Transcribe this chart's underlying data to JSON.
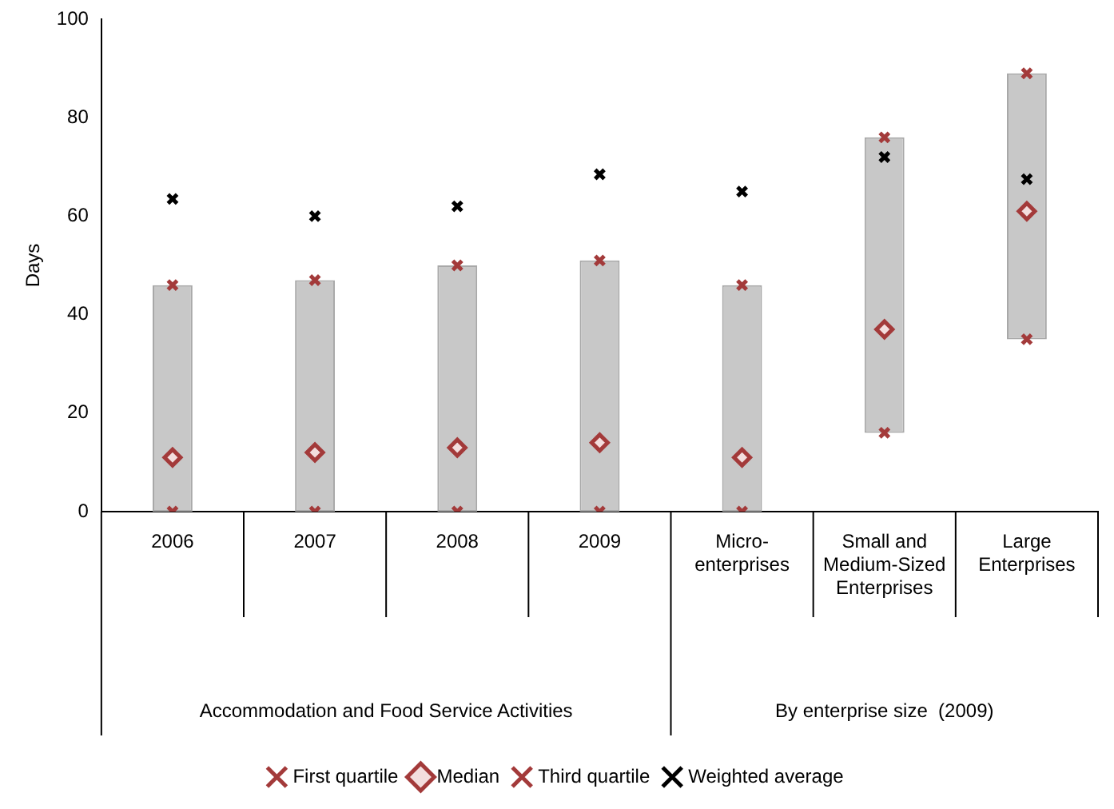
{
  "chart_data": {
    "type": "bar",
    "ylabel": "Days",
    "categories": [
      "2006",
      "2007",
      "2008",
      "2009",
      "Micro-enterprises",
      "Small and Medium-Sized Enterprises",
      "Large Enterprises"
    ],
    "series": [
      {
        "color": "#c8c8c8",
        "base": [
          0,
          0,
          0,
          0,
          0,
          16,
          35
        ],
        "values": [
          46,
          47,
          50,
          51,
          46,
          60,
          54
        ]
      },
      {
        "type": "scatter",
        "name": "First quartile",
        "color": "#a33a3a",
        "marker": "cross",
        "values": [
          0,
          0,
          0,
          0,
          0,
          16,
          35
        ]
      },
      {
        "type": "scatter",
        "name": "Median",
        "color": "#a33a3a",
        "marker": "diamond",
        "values": [
          11,
          12,
          13,
          14,
          11,
          37,
          61
        ]
      },
      {
        "type": "scatter",
        "name": "Third quartile",
        "color": "#a33a3a",
        "marker": "cross",
        "values": [
          46,
          47,
          50,
          51,
          46,
          76,
          89
        ]
      },
      {
        "type": "scatter",
        "name": "Weighted average",
        "color": "#000000",
        "marker": "cross",
        "values": [
          63.5,
          60,
          62,
          68.5,
          65,
          72,
          67.5
        ]
      }
    ],
    "ylim": [
      0,
      100
    ],
    "yticks": [
      0,
      20,
      40,
      60,
      80,
      100
    ],
    "grid": false,
    "legend": "bottom",
    "annotations": [
      "Accommodation and Food Service Activities",
      "By enterprise size  (2009)"
    ]
  }
}
